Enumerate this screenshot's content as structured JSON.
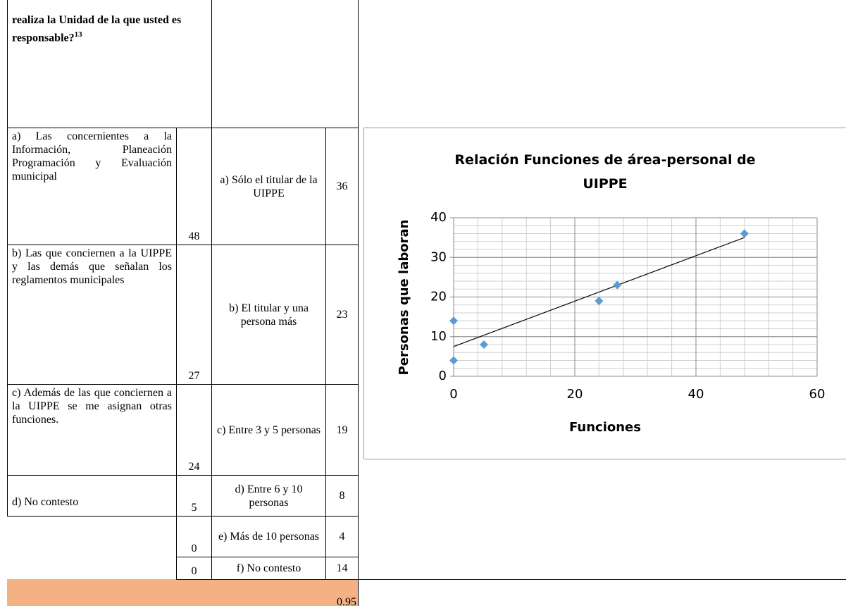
{
  "table": {
    "header": {
      "text": "realiza la Unidad de la que usted es responsable?",
      "footnote": "13"
    },
    "rows": [
      {
        "function": "a) Las concernientes a la Información, Planeación Programación y Evaluación municipal",
        "functions_count": 48,
        "staff": "a) Sólo el titular de la UIPPE",
        "staff_count": 36
      },
      {
        "function": "b) Las que conciernen a la UIPPE y las demás que señalan los reglamentos municipales",
        "functions_count": 27,
        "staff": "b) El titular y una persona más",
        "staff_count": 23
      },
      {
        "function": "c) Además de las que conciernen a la UIPPE se me asignan otras funciones.",
        "functions_count": 24,
        "staff": "c) Entre 3 y 5 personas",
        "staff_count": 19
      },
      {
        "function": "d) No contesto",
        "functions_count": 5,
        "staff": "d) Entre 6 y 10 personas",
        "staff_count": 8
      },
      {
        "functions_count": 0,
        "staff": "e) Más de 10 personas",
        "staff_count": 4
      },
      {
        "functions_count": 0,
        "staff": "f) No contesto",
        "staff_count": 14
      }
    ],
    "total": 0.95
  },
  "chart_data": {
    "type": "scatter",
    "title": "Relación Funciones de área-personal de UIPPE",
    "xlabel": "Funciones",
    "ylabel": "Personas que laboran",
    "x": [
      48,
      27,
      24,
      5,
      0,
      0
    ],
    "values": [
      36,
      23,
      19,
      8,
      4,
      14
    ],
    "color": "#5b9bd5",
    "xlim": [
      0,
      60
    ],
    "ylim": [
      0,
      40
    ],
    "xticks": [
      0,
      20,
      40,
      60
    ],
    "yticks": [
      0,
      10,
      20,
      30,
      40
    ],
    "grid": true,
    "xminor": 4,
    "yminor": 2,
    "trendline": {
      "x": [
        0,
        48
      ],
      "values": [
        7.5,
        35
      ]
    }
  }
}
